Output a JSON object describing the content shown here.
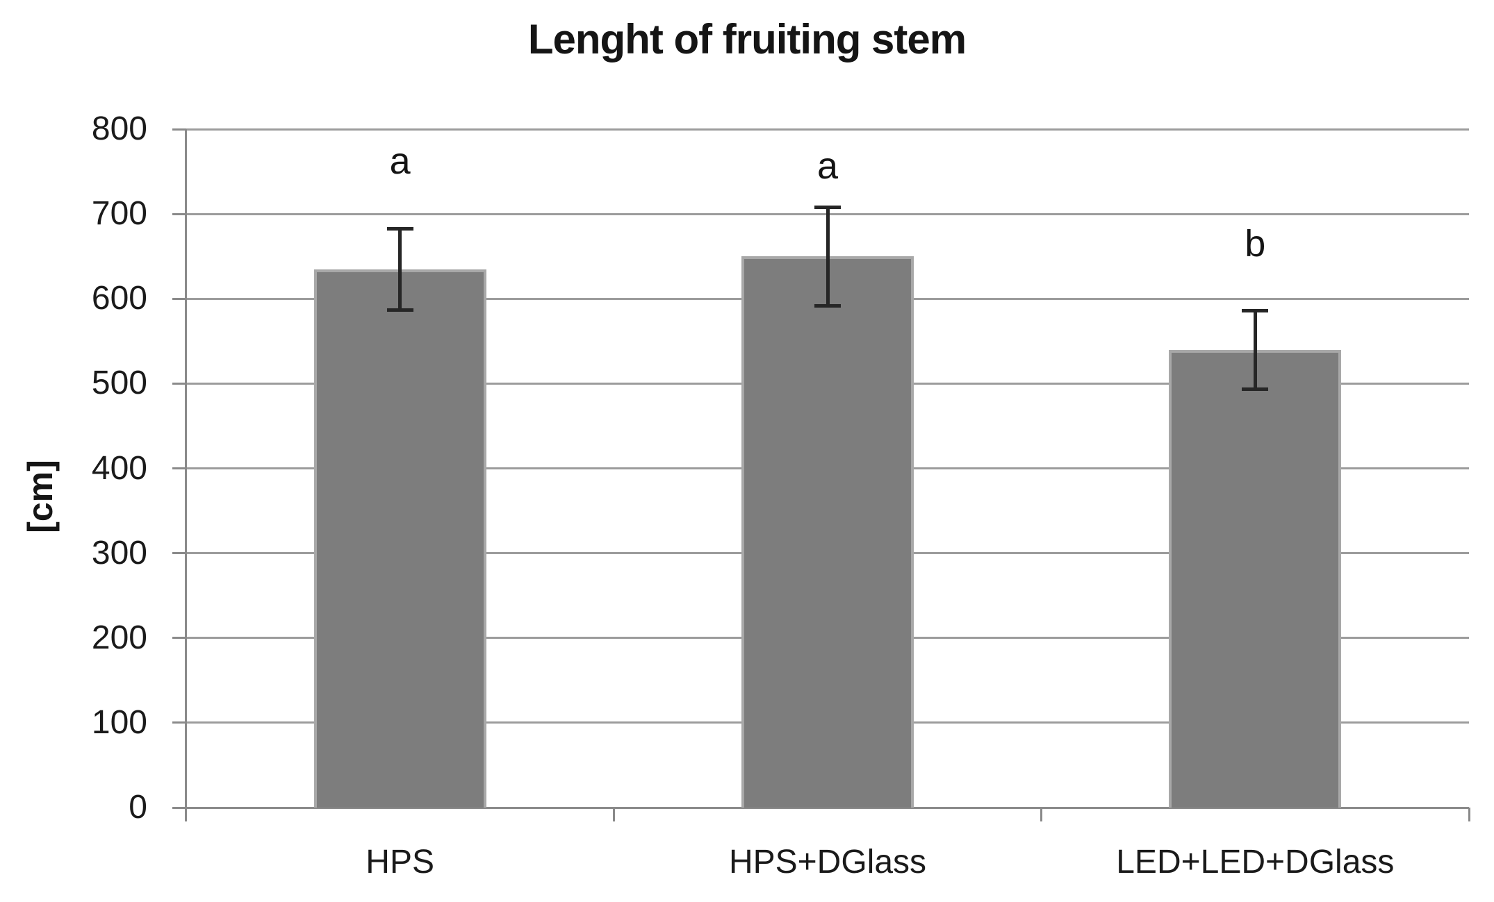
{
  "title": "Lenght of fruiting stem",
  "chart_data": {
    "type": "bar",
    "title": "Lenght of fruiting stem",
    "categories": [
      "HPS",
      "HPS+DGlass",
      "LED+LED+DGlass"
    ],
    "values": [
      635,
      650,
      540
    ],
    "error_bars": [
      48,
      58,
      46
    ],
    "annotations": [
      {
        "text": "a",
        "category_index": 0,
        "y": 762
      },
      {
        "text": "a",
        "category_index": 1,
        "y": 757
      },
      {
        "text": "b",
        "category_index": 2,
        "y": 665
      }
    ],
    "xlabel": "",
    "ylabel": "[cm]",
    "ylim": [
      0,
      800
    ],
    "yticks": [
      0,
      100,
      200,
      300,
      400,
      500,
      600,
      700,
      800
    ],
    "grid": "horizontal",
    "legend": "none",
    "colors": {
      "bar_fill": "#7d7d7d",
      "bar_border": "#a8a8a8",
      "gridline": "#9c9c9c",
      "axis": "#8a8a8a",
      "error_bar": "#262626",
      "text": "#151515"
    }
  }
}
